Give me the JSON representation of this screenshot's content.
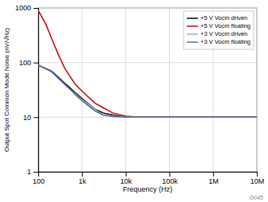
{
  "chart_data": {
    "type": "line",
    "xlabel": "Frequency (Hz)",
    "ylabel": "Output Spot Common Mode Noise (nV/√Hz)",
    "log": true,
    "grid": true,
    "legend": "upper right",
    "xlim": [
      100,
      10000000
    ],
    "ylim": [
      1,
      1000
    ],
    "xticks": [
      100,
      {
        "value": 1000,
        "label": "1k"
      },
      {
        "value": 10000,
        "label": "10k"
      },
      {
        "value": 100000,
        "label": "100k"
      },
      {
        "value": 1000000,
        "label": "1M"
      },
      {
        "value": 10000000,
        "label": "10M"
      }
    ],
    "yticks": [
      1,
      10,
      100,
      1000
    ],
    "annotations": [
      "D045"
    ],
    "series": [
      {
        "name": "+5 V Vocm driven",
        "color": "#000000",
        "x": [
          100,
          200,
          300,
          400,
          500,
          700,
          1000,
          2000,
          3000,
          5000,
          10000,
          20000,
          50000,
          100000,
          200000,
          500000,
          1000000,
          2000000,
          5000000,
          10000000
        ],
        "values": [
          90,
          70,
          52,
          42,
          36,
          28,
          22,
          14,
          12,
          11,
          10,
          10,
          10,
          10,
          10,
          10,
          10,
          10,
          10,
          10
        ]
      },
      {
        "name": "+5 V Vocm floating",
        "color": "#cc0000",
        "x": [
          100,
          150,
          200,
          300,
          400,
          500,
          700,
          1000,
          2000,
          3000,
          5000,
          10000,
          20000,
          50000,
          100000,
          200000,
          500000,
          1000000,
          2000000,
          5000000,
          10000000
        ],
        "values": [
          900,
          500,
          280,
          130,
          80,
          60,
          40,
          30,
          18,
          15,
          12,
          10.5,
          10,
          10,
          10,
          10,
          10,
          10,
          10,
          10,
          10
        ]
      },
      {
        "name": "+3 V Vocm driven",
        "color": "#aaaaaa",
        "x": [
          100,
          200,
          300,
          400,
          500,
          700,
          1000,
          2000,
          3000,
          5000,
          10000,
          20000,
          50000,
          100000,
          200000,
          500000,
          1000000,
          2000000,
          5000000,
          10000000
        ],
        "values": [
          90,
          68,
          50,
          40,
          34,
          27,
          21,
          14,
          11,
          10.5,
          10,
          10,
          10,
          10,
          10,
          10,
          10,
          10,
          10,
          10
        ]
      },
      {
        "name": "+3 V Vocm floating",
        "color": "#4a6fa5",
        "x": [
          100,
          200,
          300,
          400,
          500,
          700,
          1000,
          2000,
          3000,
          5000,
          10000,
          20000,
          50000,
          100000,
          200000,
          500000,
          1000000,
          2000000,
          5000000,
          10000000
        ],
        "values": [
          90,
          68,
          50,
          40,
          34,
          26,
          20,
          13,
          11,
          10.3,
          10,
          10,
          10,
          10,
          10,
          10,
          10,
          10,
          10,
          10
        ]
      }
    ]
  }
}
